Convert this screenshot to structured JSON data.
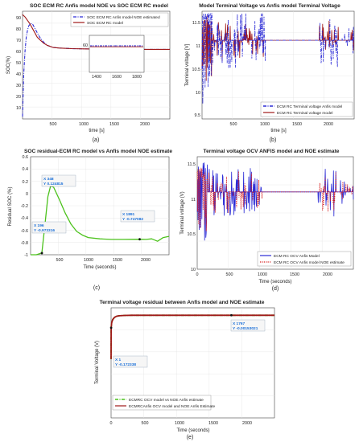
{
  "chart_data": [
    {
      "type": "line",
      "caption": "(a)",
      "title": "SOC ECM RC Anfis model NOE vs SOC ECM RC model",
      "xlabel": "time [s]",
      "ylabel": "SOC(%)",
      "xlim": [
        0,
        2400
      ],
      "ylim": [
        0,
        95
      ],
      "xticks": [
        "500",
        "1000",
        "1500",
        "2000"
      ],
      "yticks": [
        "10",
        "20",
        "30",
        "40",
        "50",
        "60",
        "70",
        "80",
        "90"
      ],
      "legend": [
        "SOC ECM RC Anfis model NOE estimated",
        "SOC ECM RC model"
      ],
      "legend_position": "top-right",
      "series": [
        {
          "name": "SOC ECM RC Anfis model NOE estimated",
          "color": "#2b2bd6",
          "style": "dashdot",
          "x": [
            0,
            20,
            40,
            60,
            80,
            100,
            130,
            160,
            200,
            240,
            280,
            340,
            400,
            500,
            600,
            800,
            1000,
            1200,
            1400,
            1600,
            1800,
            2000,
            2200,
            2400
          ],
          "y": [
            2,
            40,
            60,
            72,
            78,
            82,
            84,
            84,
            80,
            76,
            72,
            68,
            65,
            63,
            62.5,
            62,
            61.8,
            61.6,
            61.6,
            61.5,
            61.5,
            61.4,
            61.4,
            61.4
          ]
        },
        {
          "name": "SOC ECM RC model",
          "color": "#a01818",
          "style": "solid",
          "x": [
            0,
            40,
            80,
            120,
            160,
            200,
            240,
            280,
            340,
            400,
            500,
            600,
            800,
            1000,
            1200,
            1400,
            1600,
            1800,
            2000,
            2200,
            2400
          ],
          "y": [
            92,
            90,
            87,
            84,
            80,
            76,
            72,
            70,
            67,
            65,
            63,
            62.5,
            62,
            61.8,
            61.6,
            61.6,
            61.5,
            61.5,
            61.4,
            61.4,
            61.4
          ]
        }
      ],
      "inset": {
        "xticks": [
          "1400",
          "1600",
          "1800"
        ],
        "yticks": [
          "60"
        ],
        "xlim": [
          1300,
          1900
        ],
        "ylim": [
          57,
          66
        ]
      }
    },
    {
      "type": "line",
      "caption": "(b)",
      "title": "Model Terminal Voltage vs Anfis model Terminal Voltage",
      "xlabel": "time [s]",
      "ylabel": "Terminal voltage [V]",
      "xlim": [
        0,
        2400
      ],
      "ylim": [
        9.5,
        11.8
      ],
      "xticks": [
        "500",
        "1000",
        "1500",
        "2000"
      ],
      "yticks": [
        "9.5",
        "10",
        "10.5",
        "11",
        "11.5"
      ],
      "baseline": 11.18,
      "legend": [
        "ECM RC Terminal voltage Anfis model",
        "ECM RC Terminal voltage model"
      ],
      "legend_position": "bottom-right",
      "series": [
        {
          "name": "ECM RC Terminal voltage Anfis model",
          "color": "#2b2bd6",
          "style": "dashdot"
        },
        {
          "name": "ECM RC Terminal voltage model",
          "color": "#a01818",
          "style": "solid"
        }
      ]
    },
    {
      "type": "line",
      "caption": "(c)",
      "title": "SOC residual-ECM RC model vs Anfis model NOE estimate",
      "xlabel": "Time (seconds)",
      "ylabel": "Residual SOC (%)",
      "xlim": [
        0,
        2400
      ],
      "ylim": [
        -1,
        0.6
      ],
      "xticks": [
        "500",
        "1000",
        "1500",
        "2000"
      ],
      "yticks": [
        "0.6",
        "0.4",
        "0.2",
        "0",
        "-0.2",
        "-0.4",
        "-0.6",
        "-0.8",
        "-1"
      ],
      "series": [
        {
          "name": "residual",
          "color": "#4cc21c",
          "style": "solid",
          "x": [
            0,
            100,
            196,
            250,
            300,
            348,
            400,
            500,
            600,
            700,
            800,
            900,
            1000,
            1200,
            1400,
            1600,
            1891,
            2000,
            2100,
            2200,
            2300,
            2400
          ],
          "y": [
            -1,
            -1,
            -0.97,
            -0.5,
            -0.05,
            0.125,
            0.1,
            -0.1,
            -0.32,
            -0.5,
            -0.62,
            -0.68,
            -0.72,
            -0.74,
            -0.75,
            -0.75,
            -0.747,
            -0.75,
            -0.74,
            -0.78,
            -0.72,
            -0.7
          ]
        }
      ],
      "datatips": [
        {
          "x": "X 196",
          "y": "Y -0.973316"
        },
        {
          "x": "X 348",
          "y": "Y 0.124815"
        },
        {
          "x": "X 1891",
          "y": "Y -0.747082"
        }
      ]
    },
    {
      "type": "line",
      "caption": "(d)",
      "title": "Terminal voltage OCV ANFIS model and NOE estimate",
      "xlabel": "Time (seconds)",
      "ylabel": "Terminal voltage (V)",
      "xlim": [
        0,
        2400
      ],
      "ylim": [
        10,
        11.6
      ],
      "xticks": [
        "0",
        "500",
        "1000",
        "1500",
        "2000"
      ],
      "yticks": [
        "10",
        "10.5",
        "11",
        "11.5"
      ],
      "baseline": 11.1,
      "legend": [
        "ECM RC OCV Anfis Model",
        "ECM RC OCV Anfis model NOE estimate"
      ],
      "legend_position": "bottom-right",
      "series": [
        {
          "name": "ECM RC OCV Anfis Model",
          "color": "#2b2bd6",
          "style": "solid"
        },
        {
          "name": "ECM RC OCV Anfis model NOE estimate",
          "color": "#d81e1e",
          "style": "dotted"
        }
      ]
    },
    {
      "type": "line",
      "caption": "(e)",
      "title": "Terminal voltage residual between Anfis model and NOE estimate",
      "xlabel": "Time (seconds)",
      "ylabel": "Terminal Voltage (V)",
      "xlim": [
        0,
        2400
      ],
      "ylim": [
        -1.4,
        0.1
      ],
      "xticks": [
        "0",
        "500",
        "1000",
        "1500",
        "2000"
      ],
      "legend": [
        "ECMRC OCV model vs NOE Anfis  estimate",
        "ECMRCAnfis OCV model and NOE Anfis Estimate"
      ],
      "legend_position": "bottom-left",
      "series": [
        {
          "name": "ECMRC OCV model vs NOE Anfis  estimate",
          "color": "#4cc21c",
          "style": "dashdot",
          "x": [
            0,
            1,
            10,
            25,
            50,
            80,
            120,
            200,
            300,
            500,
            1000,
            1767,
            2000,
            2400
          ],
          "y": [
            -0.6,
            -0.172,
            -0.1,
            -0.06,
            -0.03,
            -0.015,
            -0.008,
            -0.004,
            -0.002,
            -0.0015,
            -0.0015,
            -0.0015,
            -0.0015,
            -0.0015
          ]
        },
        {
          "name": "ECMRCAnfis OCV model and NOE Anfis Estimate",
          "color": "#a01818",
          "style": "solid",
          "x": [
            0,
            1,
            10,
            25,
            50,
            80,
            120,
            200,
            300,
            500,
            1000,
            1767,
            2000,
            2400
          ],
          "y": [
            -0.6,
            -0.172,
            -0.1,
            -0.06,
            -0.03,
            -0.015,
            -0.008,
            -0.004,
            -0.002,
            -0.0015,
            -0.0015,
            -0.0015,
            -0.0015,
            -0.0015
          ]
        }
      ],
      "datatips": [
        {
          "x": "X 1",
          "y": "Y -0.172338"
        },
        {
          "x": "X 1767",
          "y": "Y -0.00153021"
        }
      ]
    }
  ]
}
